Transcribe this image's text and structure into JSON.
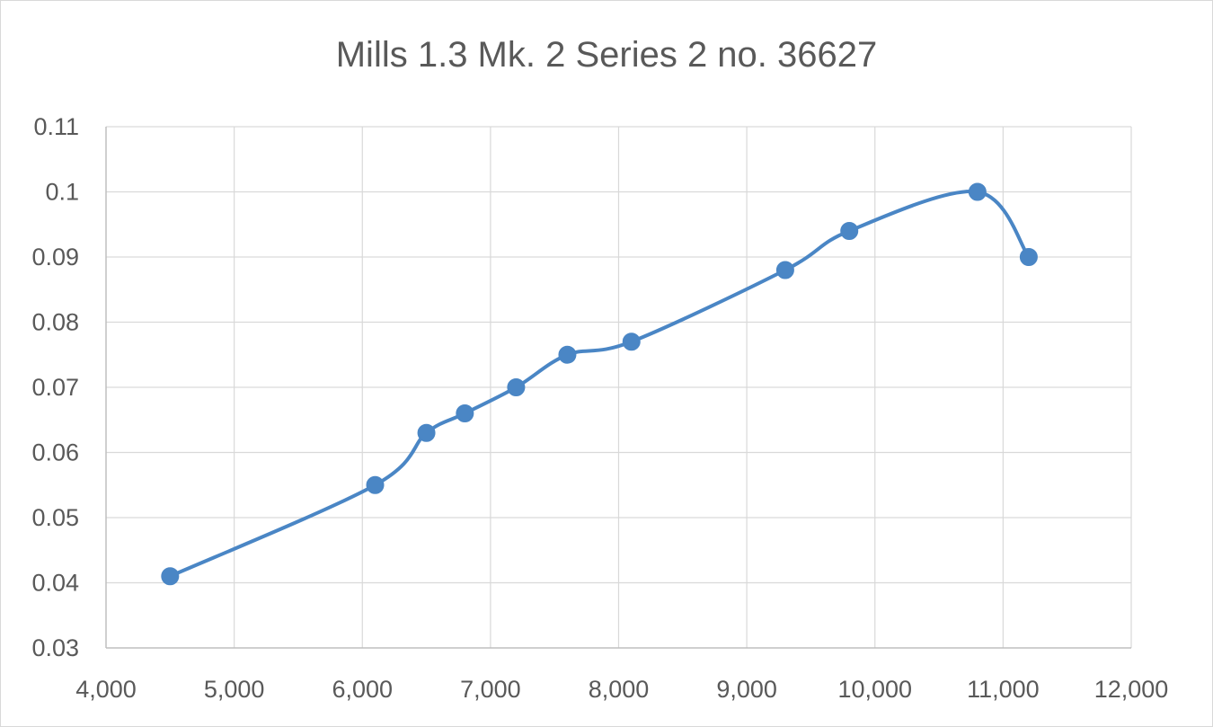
{
  "chart_data": {
    "type": "scatter",
    "title": "Mills 1.3 Mk. 2 Series 2 no. 36627",
    "xlabel": "",
    "ylabel": "",
    "xlim": [
      4000,
      12000
    ],
    "ylim": [
      0.03,
      0.11
    ],
    "x_ticks": [
      4000,
      5000,
      6000,
      7000,
      8000,
      9000,
      10000,
      11000,
      12000
    ],
    "x_tick_labels": [
      "4,000",
      "5,000",
      "6,000",
      "7,000",
      "8,000",
      "9,000",
      "10,000",
      "11,000",
      "12,000"
    ],
    "y_ticks": [
      0.03,
      0.04,
      0.05,
      0.06,
      0.07,
      0.08,
      0.09,
      0.1,
      0.11
    ],
    "y_tick_labels": [
      "0.03",
      "0.04",
      "0.05",
      "0.06",
      "0.07",
      "0.08",
      "0.09",
      "0.1",
      "0.11"
    ],
    "grid": true,
    "smooth_line": true,
    "markers": true,
    "series_color": "#4a86c5",
    "series": [
      {
        "x": [
          4500,
          6100,
          6500,
          6800,
          7200,
          7600,
          8100,
          9300,
          9800,
          10800,
          11200
        ],
        "values": [
          0.041,
          0.055,
          0.063,
          0.066,
          0.07,
          0.075,
          0.077,
          0.088,
          0.094,
          0.1,
          0.09
        ]
      }
    ]
  }
}
